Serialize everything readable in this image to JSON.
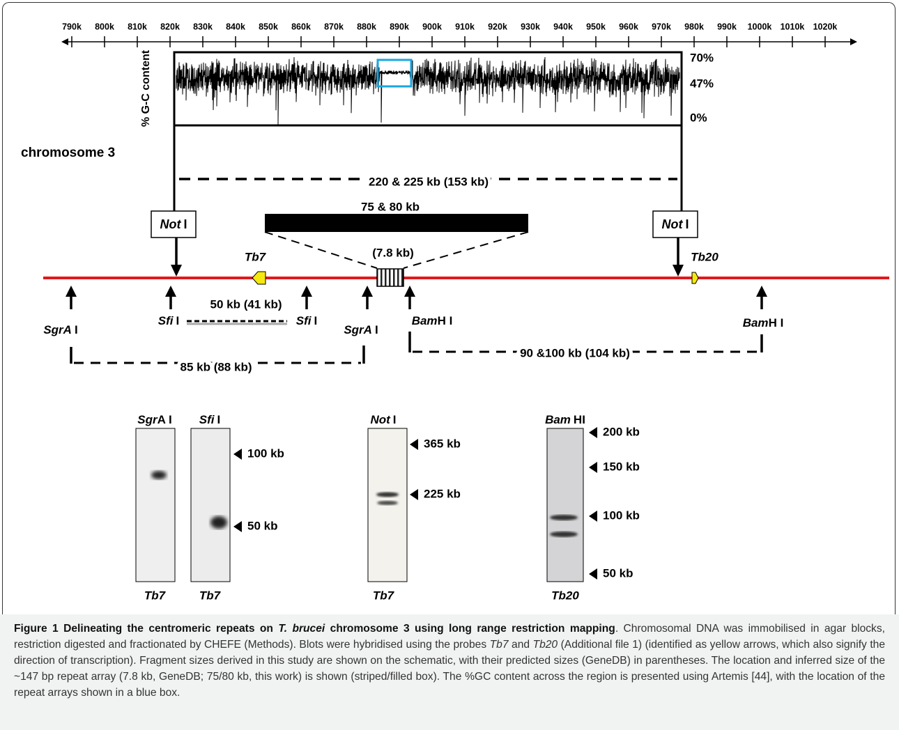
{
  "scale": {
    "ticks": [
      "790k",
      "800k",
      "810k",
      "820k",
      "830k",
      "840k",
      "850k",
      "860k",
      "870k",
      "880k",
      "890k",
      "900k",
      "910k",
      "920k",
      "930k",
      "940k",
      "950k",
      "960k",
      "970k",
      "980k",
      "990k",
      "1000k",
      "1010k",
      "1020k"
    ]
  },
  "gc_plot": {
    "axis_label": "% G-C content",
    "levels": [
      "70%",
      "47%",
      "0%"
    ]
  },
  "chromosome_label": "chromosome 3",
  "not_i_fragment": "220 & 225 kb (153 kb)",
  "repeat_array": {
    "size": "75 & 80 kb",
    "predicted": "(7.8 kb)"
  },
  "sites": [
    {
      "enzyme": "Not",
      "suffix": "I"
    },
    {
      "enzyme": "Not",
      "suffix": "I"
    },
    {
      "enzyme": "SgrA",
      "suffix": "I"
    },
    {
      "enzyme": "Sfi",
      "suffix": "I"
    },
    {
      "enzyme": "Sfi",
      "suffix": "I"
    },
    {
      "enzyme": "SgrA",
      "suffix": "I"
    },
    {
      "enzyme": "Bam",
      "suffix": "H I"
    },
    {
      "enzyme": "Bam",
      "suffix": "H I"
    }
  ],
  "genes": [
    "Tb7",
    "Tb20"
  ],
  "fragments": [
    "50 kb (41 kb)",
    "85 kb (88 kb)",
    "90 &100 kb (104 kb)"
  ],
  "blots": [
    {
      "enzyme": "Sgr",
      "suffix": "A I",
      "probe": "Tb7"
    },
    {
      "enzyme": "Sfi",
      "suffix": "I",
      "probe": "Tb7",
      "markers": [
        "100 kb",
        "50 kb"
      ]
    },
    {
      "enzyme": "Not",
      "suffix": "I",
      "probe": "Tb7",
      "markers": [
        "365 kb",
        "225 kb"
      ]
    },
    {
      "enzyme": "Bam",
      "suffix": "HI",
      "probe": "Tb20",
      "markers": [
        "200 kb",
        "150 kb",
        "100 kb",
        "50 kb"
      ]
    }
  ],
  "caption": {
    "runs": [
      "Figure 1 Delineating the centromeric repeats on ",
      "T. brucei",
      " chromosome 3 using long range restriction mapping",
      ". Chromosomal DNA was immobilised in agar blocks, restriction digested and fractionated by CHEFE (Methods). Blots were hybridised using the probes ",
      "Tb7",
      " and ",
      "Tb20",
      " (Additional file 1) (identified as yellow arrows, which also signify the direction of transcription). Fragment sizes derived in this study are shown on the schematic, with their predicted sizes (GeneDB) in parentheses. The location and inferred size of the ~147 bp repeat array (7.8 kb, GeneDB; 75/80 kb, this work) is shown (striped/filled box). The %GC content across the region is presented using Artemis [44], with the location of the repeat arrays shown in a blue box."
    ]
  }
}
